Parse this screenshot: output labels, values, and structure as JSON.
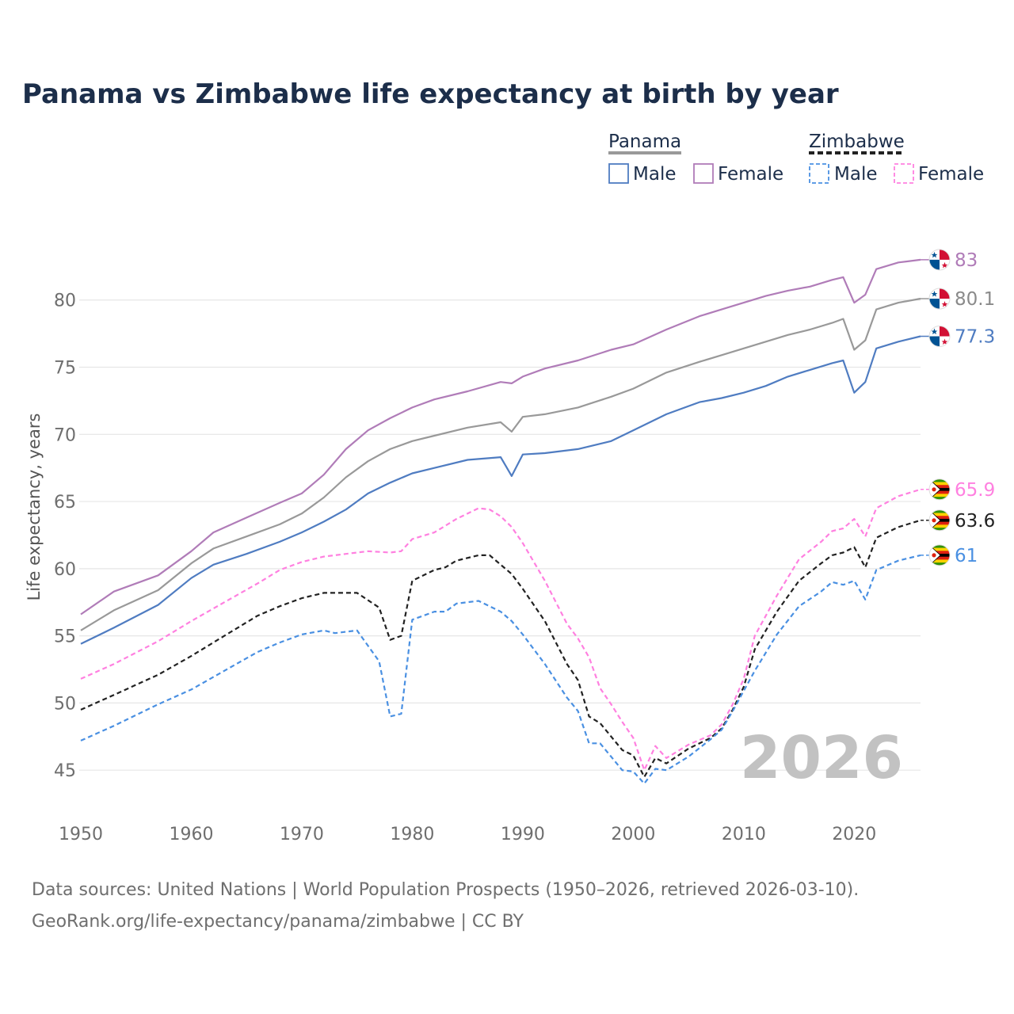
{
  "title": "Panama vs Zimbabwe life expectancy at birth by year",
  "legend": {
    "group1": "Panama",
    "group2": "Zimbabwe",
    "male": "Male",
    "female": "Female"
  },
  "year_watermark": "2026",
  "source_line1": "Data sources: United Nations | World Population Prospects (1950–2026, retrieved 2026-03-10).",
  "source_line2": "GeoRank.org/life-expectancy/panama/zimbabwe | CC BY",
  "colors": {
    "panama_male": "#4f7cc1",
    "panama_female": "#b07cb8",
    "panama_total": "#999999",
    "zim_male": "#4a90e2",
    "zim_female": "#ff80e0",
    "zim_total": "#222222"
  },
  "chart_data": {
    "type": "line",
    "title": "Panama vs Zimbabwe life expectancy at birth by year",
    "xlabel": "",
    "ylabel": "Life expectancy, years",
    "xlim": [
      1950,
      2026
    ],
    "ylim": [
      41,
      86
    ],
    "x_ticks": [
      1950,
      1960,
      1970,
      1980,
      1990,
      2000,
      2010,
      2020
    ],
    "y_ticks": [
      45,
      50,
      55,
      60,
      65,
      70,
      75,
      80
    ],
    "grid": true,
    "legend_position": "top-right",
    "end_labels": {
      "panama_female": "83",
      "panama_total": "80.1",
      "panama_male": "77.3",
      "zim_female": "65.9",
      "zim_total": "63.6",
      "zim_male": "61"
    },
    "series": [
      {
        "name": "Panama Female",
        "key": "panama_female",
        "style": "solid",
        "points": [
          [
            1950,
            56.6
          ],
          [
            1953,
            58.3
          ],
          [
            1957,
            59.5
          ],
          [
            1960,
            61.3
          ],
          [
            1962,
            62.7
          ],
          [
            1965,
            63.8
          ],
          [
            1968,
            64.9
          ],
          [
            1970,
            65.6
          ],
          [
            1972,
            67.0
          ],
          [
            1974,
            68.9
          ],
          [
            1976,
            70.3
          ],
          [
            1978,
            71.2
          ],
          [
            1980,
            72.0
          ],
          [
            1982,
            72.6
          ],
          [
            1985,
            73.2
          ],
          [
            1988,
            73.9
          ],
          [
            1989,
            73.8
          ],
          [
            1990,
            74.3
          ],
          [
            1992,
            74.9
          ],
          [
            1995,
            75.5
          ],
          [
            1998,
            76.3
          ],
          [
            2000,
            76.7
          ],
          [
            2003,
            77.8
          ],
          [
            2006,
            78.8
          ],
          [
            2008,
            79.3
          ],
          [
            2010,
            79.8
          ],
          [
            2012,
            80.3
          ],
          [
            2014,
            80.7
          ],
          [
            2016,
            81.0
          ],
          [
            2018,
            81.5
          ],
          [
            2019,
            81.7
          ],
          [
            2020,
            79.8
          ],
          [
            2021,
            80.4
          ],
          [
            2022,
            82.3
          ],
          [
            2024,
            82.8
          ],
          [
            2026,
            83.0
          ]
        ]
      },
      {
        "name": "Panama",
        "key": "panama_total",
        "style": "solid",
        "points": [
          [
            1950,
            55.4
          ],
          [
            1953,
            56.9
          ],
          [
            1957,
            58.4
          ],
          [
            1960,
            60.4
          ],
          [
            1962,
            61.5
          ],
          [
            1965,
            62.4
          ],
          [
            1968,
            63.3
          ],
          [
            1970,
            64.1
          ],
          [
            1972,
            65.3
          ],
          [
            1974,
            66.8
          ],
          [
            1976,
            68.0
          ],
          [
            1978,
            68.9
          ],
          [
            1980,
            69.5
          ],
          [
            1982,
            69.9
          ],
          [
            1985,
            70.5
          ],
          [
            1988,
            70.9
          ],
          [
            1989,
            70.2
          ],
          [
            1990,
            71.3
          ],
          [
            1992,
            71.5
          ],
          [
            1995,
            72.0
          ],
          [
            1998,
            72.8
          ],
          [
            2000,
            73.4
          ],
          [
            2003,
            74.6
          ],
          [
            2006,
            75.4
          ],
          [
            2008,
            75.9
          ],
          [
            2010,
            76.4
          ],
          [
            2012,
            76.9
          ],
          [
            2014,
            77.4
          ],
          [
            2016,
            77.8
          ],
          [
            2018,
            78.3
          ],
          [
            2019,
            78.6
          ],
          [
            2020,
            76.3
          ],
          [
            2021,
            77.0
          ],
          [
            2022,
            79.3
          ],
          [
            2024,
            79.8
          ],
          [
            2026,
            80.1
          ]
        ]
      },
      {
        "name": "Panama Male",
        "key": "panama_male",
        "style": "solid",
        "points": [
          [
            1950,
            54.4
          ],
          [
            1953,
            55.6
          ],
          [
            1957,
            57.3
          ],
          [
            1960,
            59.3
          ],
          [
            1962,
            60.3
          ],
          [
            1965,
            61.1
          ],
          [
            1968,
            62.0
          ],
          [
            1970,
            62.7
          ],
          [
            1972,
            63.5
          ],
          [
            1974,
            64.4
          ],
          [
            1976,
            65.6
          ],
          [
            1978,
            66.4
          ],
          [
            1980,
            67.1
          ],
          [
            1982,
            67.5
          ],
          [
            1985,
            68.1
          ],
          [
            1988,
            68.3
          ],
          [
            1989,
            66.9
          ],
          [
            1990,
            68.5
          ],
          [
            1992,
            68.6
          ],
          [
            1995,
            68.9
          ],
          [
            1998,
            69.5
          ],
          [
            2000,
            70.3
          ],
          [
            2003,
            71.5
          ],
          [
            2006,
            72.4
          ],
          [
            2008,
            72.7
          ],
          [
            2010,
            73.1
          ],
          [
            2012,
            73.6
          ],
          [
            2014,
            74.3
          ],
          [
            2016,
            74.8
          ],
          [
            2018,
            75.3
          ],
          [
            2019,
            75.5
          ],
          [
            2020,
            73.1
          ],
          [
            2021,
            73.9
          ],
          [
            2022,
            76.4
          ],
          [
            2024,
            76.9
          ],
          [
            2026,
            77.3
          ]
        ]
      },
      {
        "name": "Zimbabwe Female",
        "key": "zim_female",
        "style": "dashed",
        "points": [
          [
            1950,
            51.8
          ],
          [
            1953,
            52.9
          ],
          [
            1957,
            54.6
          ],
          [
            1960,
            56.1
          ],
          [
            1963,
            57.5
          ],
          [
            1966,
            58.9
          ],
          [
            1968,
            59.9
          ],
          [
            1970,
            60.5
          ],
          [
            1972,
            60.9
          ],
          [
            1974,
            61.1
          ],
          [
            1976,
            61.3
          ],
          [
            1978,
            61.2
          ],
          [
            1979,
            61.3
          ],
          [
            1980,
            62.2
          ],
          [
            1982,
            62.7
          ],
          [
            1984,
            63.7
          ],
          [
            1986,
            64.5
          ],
          [
            1987,
            64.4
          ],
          [
            1988,
            63.9
          ],
          [
            1989,
            63.1
          ],
          [
            1990,
            61.9
          ],
          [
            1992,
            59.1
          ],
          [
            1994,
            55.9
          ],
          [
            1995,
            54.8
          ],
          [
            1996,
            53.4
          ],
          [
            1997,
            51.1
          ],
          [
            1998,
            49.9
          ],
          [
            1999,
            48.6
          ],
          [
            2000,
            47.4
          ],
          [
            2001,
            45.0
          ],
          [
            2002,
            46.8
          ],
          [
            2003,
            45.9
          ],
          [
            2005,
            46.9
          ],
          [
            2007,
            47.6
          ],
          [
            2008,
            48.4
          ],
          [
            2009,
            49.9
          ],
          [
            2010,
            51.8
          ],
          [
            2011,
            55.0
          ],
          [
            2013,
            58.0
          ],
          [
            2015,
            60.7
          ],
          [
            2017,
            62.0
          ],
          [
            2018,
            62.8
          ],
          [
            2019,
            63.0
          ],
          [
            2020,
            63.7
          ],
          [
            2021,
            62.4
          ],
          [
            2022,
            64.5
          ],
          [
            2024,
            65.4
          ],
          [
            2026,
            65.9
          ]
        ]
      },
      {
        "name": "Zimbabwe",
        "key": "zim_total",
        "style": "dashed",
        "points": [
          [
            1950,
            49.5
          ],
          [
            1953,
            50.6
          ],
          [
            1957,
            52.1
          ],
          [
            1960,
            53.5
          ],
          [
            1963,
            55.0
          ],
          [
            1966,
            56.5
          ],
          [
            1968,
            57.2
          ],
          [
            1970,
            57.8
          ],
          [
            1972,
            58.2
          ],
          [
            1974,
            58.2
          ],
          [
            1975,
            58.2
          ],
          [
            1977,
            57.1
          ],
          [
            1978,
            54.7
          ],
          [
            1979,
            55.0
          ],
          [
            1980,
            59.1
          ],
          [
            1982,
            59.9
          ],
          [
            1983,
            60.1
          ],
          [
            1984,
            60.6
          ],
          [
            1986,
            61.0
          ],
          [
            1987,
            61.0
          ],
          [
            1988,
            60.3
          ],
          [
            1989,
            59.6
          ],
          [
            1990,
            58.5
          ],
          [
            1992,
            56.1
          ],
          [
            1994,
            52.9
          ],
          [
            1995,
            51.7
          ],
          [
            1996,
            49.0
          ],
          [
            1997,
            48.5
          ],
          [
            1998,
            47.5
          ],
          [
            1999,
            46.5
          ],
          [
            2000,
            46.1
          ],
          [
            2001,
            44.5
          ],
          [
            2002,
            45.9
          ],
          [
            2003,
            45.5
          ],
          [
            2005,
            46.6
          ],
          [
            2007,
            47.4
          ],
          [
            2008,
            48.1
          ],
          [
            2009,
            49.5
          ],
          [
            2010,
            51.2
          ],
          [
            2011,
            54.0
          ],
          [
            2013,
            56.8
          ],
          [
            2015,
            59.1
          ],
          [
            2017,
            60.4
          ],
          [
            2018,
            61.0
          ],
          [
            2019,
            61.2
          ],
          [
            2020,
            61.6
          ],
          [
            2021,
            60.1
          ],
          [
            2022,
            62.3
          ],
          [
            2024,
            63.1
          ],
          [
            2026,
            63.6
          ]
        ]
      },
      {
        "name": "Zimbabwe Male",
        "key": "zim_male",
        "style": "dashed",
        "points": [
          [
            1950,
            47.2
          ],
          [
            1953,
            48.3
          ],
          [
            1957,
            49.9
          ],
          [
            1960,
            51.0
          ],
          [
            1963,
            52.4
          ],
          [
            1966,
            53.8
          ],
          [
            1968,
            54.5
          ],
          [
            1970,
            55.1
          ],
          [
            1972,
            55.4
          ],
          [
            1973,
            55.2
          ],
          [
            1975,
            55.4
          ],
          [
            1977,
            53.1
          ],
          [
            1978,
            49.0
          ],
          [
            1979,
            49.2
          ],
          [
            1980,
            56.2
          ],
          [
            1982,
            56.8
          ],
          [
            1983,
            56.8
          ],
          [
            1984,
            57.4
          ],
          [
            1986,
            57.6
          ],
          [
            1987,
            57.2
          ],
          [
            1988,
            56.8
          ],
          [
            1989,
            56.1
          ],
          [
            1990,
            55.1
          ],
          [
            1992,
            52.9
          ],
          [
            1994,
            50.4
          ],
          [
            1995,
            49.4
          ],
          [
            1996,
            47.0
          ],
          [
            1997,
            47.0
          ],
          [
            1998,
            46.0
          ],
          [
            1999,
            45.0
          ],
          [
            2000,
            44.9
          ],
          [
            2001,
            44.0
          ],
          [
            2002,
            45.1
          ],
          [
            2003,
            45.0
          ],
          [
            2005,
            46.0
          ],
          [
            2007,
            47.3
          ],
          [
            2008,
            48.0
          ],
          [
            2009,
            49.4
          ],
          [
            2010,
            50.9
          ],
          [
            2011,
            52.4
          ],
          [
            2013,
            55.1
          ],
          [
            2015,
            57.2
          ],
          [
            2017,
            58.3
          ],
          [
            2018,
            59.0
          ],
          [
            2019,
            58.8
          ],
          [
            2020,
            59.1
          ],
          [
            2021,
            57.7
          ],
          [
            2022,
            59.9
          ],
          [
            2024,
            60.6
          ],
          [
            2026,
            61.0
          ]
        ]
      }
    ]
  }
}
